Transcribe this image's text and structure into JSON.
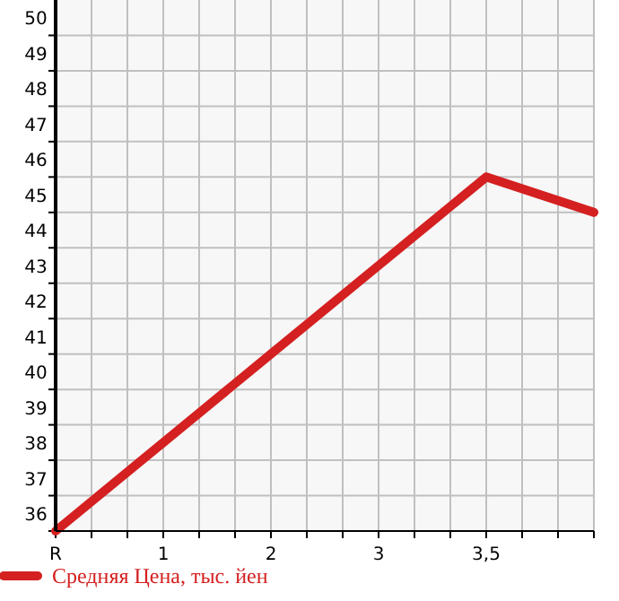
{
  "chart_data": {
    "type": "line",
    "categories": [
      "R",
      "1",
      "2",
      "3",
      "3,5",
      null
    ],
    "series": [
      {
        "name": "Средняя Цена, тыс. йен",
        "color": "#d42020",
        "values": [
          36,
          38.5,
          41,
          43.5,
          46,
          45
        ]
      }
    ],
    "ylim": [
      36,
      51
    ],
    "yticks": [
      36,
      37,
      38,
      39,
      40,
      41,
      42,
      43,
      44,
      45,
      46,
      47,
      48,
      49,
      50
    ],
    "grid": true,
    "legend": "bottom",
    "marker": "none",
    "line_style": "solid"
  }
}
